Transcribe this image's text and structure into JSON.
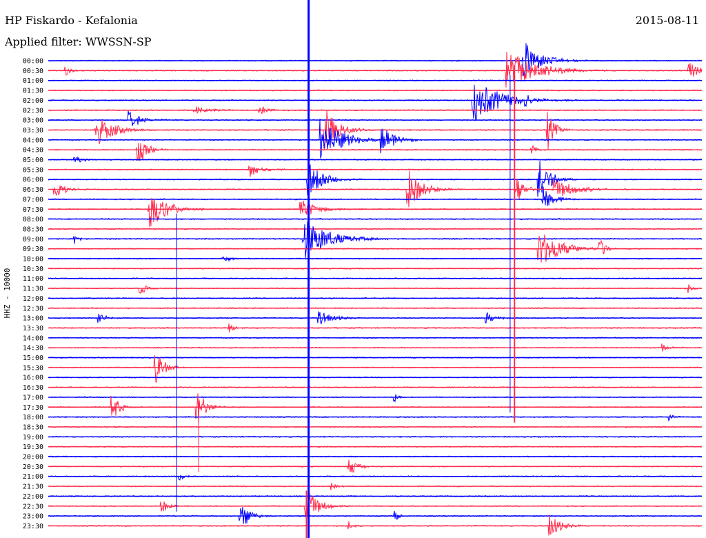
{
  "header": {
    "station": "HP Fiskardo - Kefalonia",
    "filter": "Applied filter: WWSSN-SP",
    "date": "2015-08-11"
  },
  "chart_data": {
    "type": "line",
    "title": "",
    "ylabel": "HHZ - 10000",
    "xlabel": "",
    "grid": false,
    "colors": {
      "odd": "#0000ff",
      "even": "#ff2a4a"
    },
    "rows": [
      "00:00",
      "00:30",
      "01:00",
      "01:30",
      "02:00",
      "02:30",
      "03:00",
      "03:30",
      "04:00",
      "04:30",
      "05:00",
      "05:30",
      "06:00",
      "06:30",
      "07:00",
      "07:30",
      "08:00",
      "08:30",
      "09:00",
      "09:30",
      "10:00",
      "10:30",
      "11:00",
      "11:30",
      "12:00",
      "12:30",
      "13:00",
      "13:30",
      "14:00",
      "14:30",
      "15:00",
      "15:30",
      "16:00",
      "16:30",
      "17:00",
      "17:30",
      "18:00",
      "18:30",
      "19:00",
      "19:30",
      "20:00",
      "20:30",
      "21:00",
      "21:30",
      "22:00",
      "22:30",
      "23:00",
      "23:30"
    ],
    "x_range_minutes": [
      0,
      30
    ],
    "events": [
      {
        "row": 0,
        "x": 21.8,
        "amp": 1.0,
        "dur": 1.2
      },
      {
        "row": 1,
        "x": 0.8,
        "amp": 0.25,
        "dur": 0.4
      },
      {
        "row": 1,
        "x": 21.0,
        "amp": 1.0,
        "dur": 2.0
      },
      {
        "row": 1,
        "x": 29.4,
        "amp": 0.55,
        "dur": 0.6
      },
      {
        "row": 4,
        "x": 19.5,
        "amp": 1.0,
        "dur": 2.0
      },
      {
        "row": 4,
        "x": 21.9,
        "amp": 0.25,
        "dur": 0.4
      },
      {
        "row": 5,
        "x": 6.7,
        "amp": 0.2,
        "dur": 1.0
      },
      {
        "row": 5,
        "x": 9.7,
        "amp": 0.2,
        "dur": 0.8
      },
      {
        "row": 6,
        "x": 3.7,
        "amp": 0.45,
        "dur": 0.8
      },
      {
        "row": 7,
        "x": 2.2,
        "amp": 0.75,
        "dur": 1.2
      },
      {
        "row": 7,
        "x": 12.7,
        "amp": 1.0,
        "dur": 1.0
      },
      {
        "row": 7,
        "x": 22.9,
        "amp": 1.0,
        "dur": 0.5
      },
      {
        "row": 8,
        "x": 12.5,
        "amp": 1.0,
        "dur": 1.6
      },
      {
        "row": 8,
        "x": 15.3,
        "amp": 0.6,
        "dur": 1.0
      },
      {
        "row": 9,
        "x": 4.1,
        "amp": 0.9,
        "dur": 0.6
      },
      {
        "row": 9,
        "x": 22.2,
        "amp": 0.35,
        "dur": 0.3
      },
      {
        "row": 10,
        "x": 1.2,
        "amp": 0.2,
        "dur": 0.6
      },
      {
        "row": 11,
        "x": 9.2,
        "amp": 0.4,
        "dur": 0.8
      },
      {
        "row": 12,
        "x": 11.9,
        "amp": 1.0,
        "dur": 1.0
      },
      {
        "row": 12,
        "x": 22.5,
        "amp": 1.0,
        "dur": 0.8
      },
      {
        "row": 13,
        "x": 0.3,
        "amp": 0.5,
        "dur": 0.6
      },
      {
        "row": 13,
        "x": 16.5,
        "amp": 1.0,
        "dur": 1.0
      },
      {
        "row": 13,
        "x": 21.5,
        "amp": 0.7,
        "dur": 0.6
      },
      {
        "row": 13,
        "x": 23.2,
        "amp": 0.5,
        "dur": 1.5
      },
      {
        "row": 14,
        "x": 22.7,
        "amp": 0.6,
        "dur": 0.8
      },
      {
        "row": 15,
        "x": 4.6,
        "amp": 1.0,
        "dur": 1.2
      },
      {
        "row": 15,
        "x": 11.6,
        "amp": 0.45,
        "dur": 1.2
      },
      {
        "row": 18,
        "x": 1.2,
        "amp": 0.35,
        "dur": 0.3
      },
      {
        "row": 18,
        "x": 11.7,
        "amp": 1.0,
        "dur": 1.8
      },
      {
        "row": 19,
        "x": 22.5,
        "amp": 1.0,
        "dur": 1.5
      },
      {
        "row": 19,
        "x": 25.3,
        "amp": 0.6,
        "dur": 0.4
      },
      {
        "row": 20,
        "x": 8.0,
        "amp": 0.2,
        "dur": 0.6
      },
      {
        "row": 23,
        "x": 4.2,
        "amp": 0.35,
        "dur": 0.4
      },
      {
        "row": 23,
        "x": 29.4,
        "amp": 0.3,
        "dur": 0.3
      },
      {
        "row": 26,
        "x": 2.3,
        "amp": 0.25,
        "dur": 0.5
      },
      {
        "row": 26,
        "x": 12.4,
        "amp": 0.35,
        "dur": 1.0
      },
      {
        "row": 26,
        "x": 20.1,
        "amp": 0.3,
        "dur": 0.6
      },
      {
        "row": 27,
        "x": 8.3,
        "amp": 0.3,
        "dur": 0.4
      },
      {
        "row": 29,
        "x": 28.2,
        "amp": 0.2,
        "dur": 0.4
      },
      {
        "row": 31,
        "x": 4.9,
        "amp": 0.9,
        "dur": 0.6
      },
      {
        "row": 34,
        "x": 15.9,
        "amp": 0.25,
        "dur": 0.3
      },
      {
        "row": 35,
        "x": 2.9,
        "amp": 0.8,
        "dur": 0.5
      },
      {
        "row": 35,
        "x": 6.8,
        "amp": 1.0,
        "dur": 0.6
      },
      {
        "row": 36,
        "x": 28.5,
        "amp": 0.2,
        "dur": 0.3
      },
      {
        "row": 41,
        "x": 13.8,
        "amp": 0.45,
        "dur": 0.6
      },
      {
        "row": 42,
        "x": 6.0,
        "amp": 0.2,
        "dur": 0.4
      },
      {
        "row": 43,
        "x": 13.0,
        "amp": 0.2,
        "dur": 0.3
      },
      {
        "row": 45,
        "x": 5.2,
        "amp": 0.35,
        "dur": 0.5
      },
      {
        "row": 45,
        "x": 11.8,
        "amp": 1.0,
        "dur": 0.8
      },
      {
        "row": 46,
        "x": 8.8,
        "amp": 0.8,
        "dur": 0.6
      },
      {
        "row": 46,
        "x": 15.9,
        "amp": 0.3,
        "dur": 0.3
      },
      {
        "row": 47,
        "x": 13.8,
        "amp": 0.2,
        "dur": 0.3
      },
      {
        "row": 47,
        "x": 23.0,
        "amp": 0.55,
        "dur": 0.8
      }
    ],
    "spikes": [
      {
        "x": 11.95,
        "from_row": 0,
        "to_row": 47,
        "color": "odd",
        "width": 3
      },
      {
        "x": 11.85,
        "from_row": 44,
        "to_row": 47,
        "color": "even",
        "width": 2
      },
      {
        "x": 5.9,
        "from_row": 16,
        "to_row": 45,
        "color": "odd",
        "width": 1
      },
      {
        "x": 6.9,
        "from_row": 35,
        "to_row": 41,
        "color": "even",
        "width": 1
      },
      {
        "x": 21.4,
        "from_row": 1,
        "to_row": 36,
        "color": "even",
        "width": 2
      },
      {
        "x": 21.2,
        "from_row": 2,
        "to_row": 35,
        "color": "odd",
        "width": 1
      }
    ]
  }
}
